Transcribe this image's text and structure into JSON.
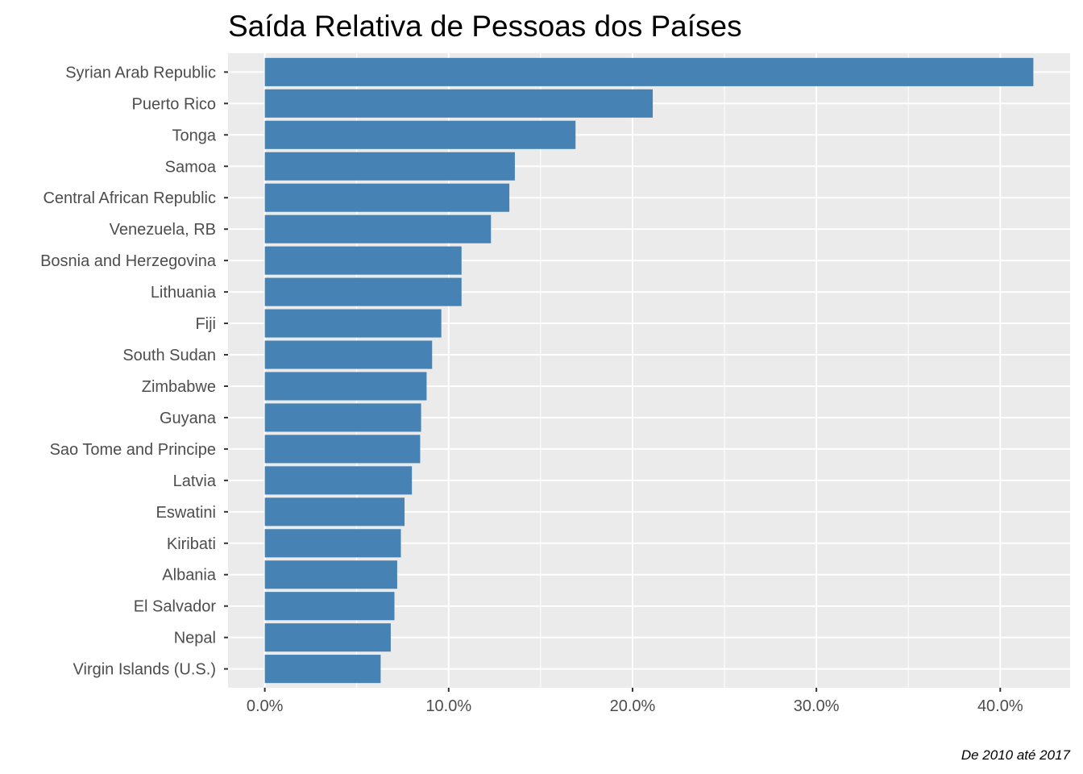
{
  "chart_data": {
    "type": "bar",
    "orientation": "horizontal",
    "title": "Saída Relativa de Pessoas dos Países",
    "caption": "De 2010 até 2017",
    "xlabel": "",
    "ylabel": "",
    "categories": [
      "Syrian Arab Republic",
      "Puerto Rico",
      "Tonga",
      "Samoa",
      "Central African Republic",
      "Venezuela, RB",
      "Bosnia and Herzegovina",
      "Lithuania",
      "Fiji",
      "South Sudan",
      "Zimbabwe",
      "Guyana",
      "Sao Tome and Principe",
      "Latvia",
      "Eswatini",
      "Kiribati",
      "Albania",
      "El Salvador",
      "Nepal",
      "Virgin Islands (U.S.)"
    ],
    "values": [
      41.8,
      21.1,
      16.9,
      13.6,
      13.3,
      12.3,
      10.7,
      10.7,
      9.6,
      9.1,
      8.8,
      8.5,
      8.45,
      8.0,
      7.6,
      7.4,
      7.2,
      7.05,
      6.85,
      6.3
    ],
    "value_unit": "%",
    "xlim": [
      -2.0,
      43.8
    ],
    "x_ticks": [
      0,
      10,
      20,
      30,
      40
    ],
    "x_tick_labels": [
      "0.0%",
      "10.0%",
      "20.0%",
      "30.0%",
      "40.0%"
    ],
    "x_minor_ticks": [
      5,
      15,
      25,
      35
    ],
    "grid": true,
    "legend": "none",
    "colors": {
      "bar": "#4682B4",
      "panel_background": "#EBEBEB",
      "grid": "#FFFFFF",
      "tick_text": "#4D4D4D",
      "tick_mark": "#333333"
    }
  }
}
